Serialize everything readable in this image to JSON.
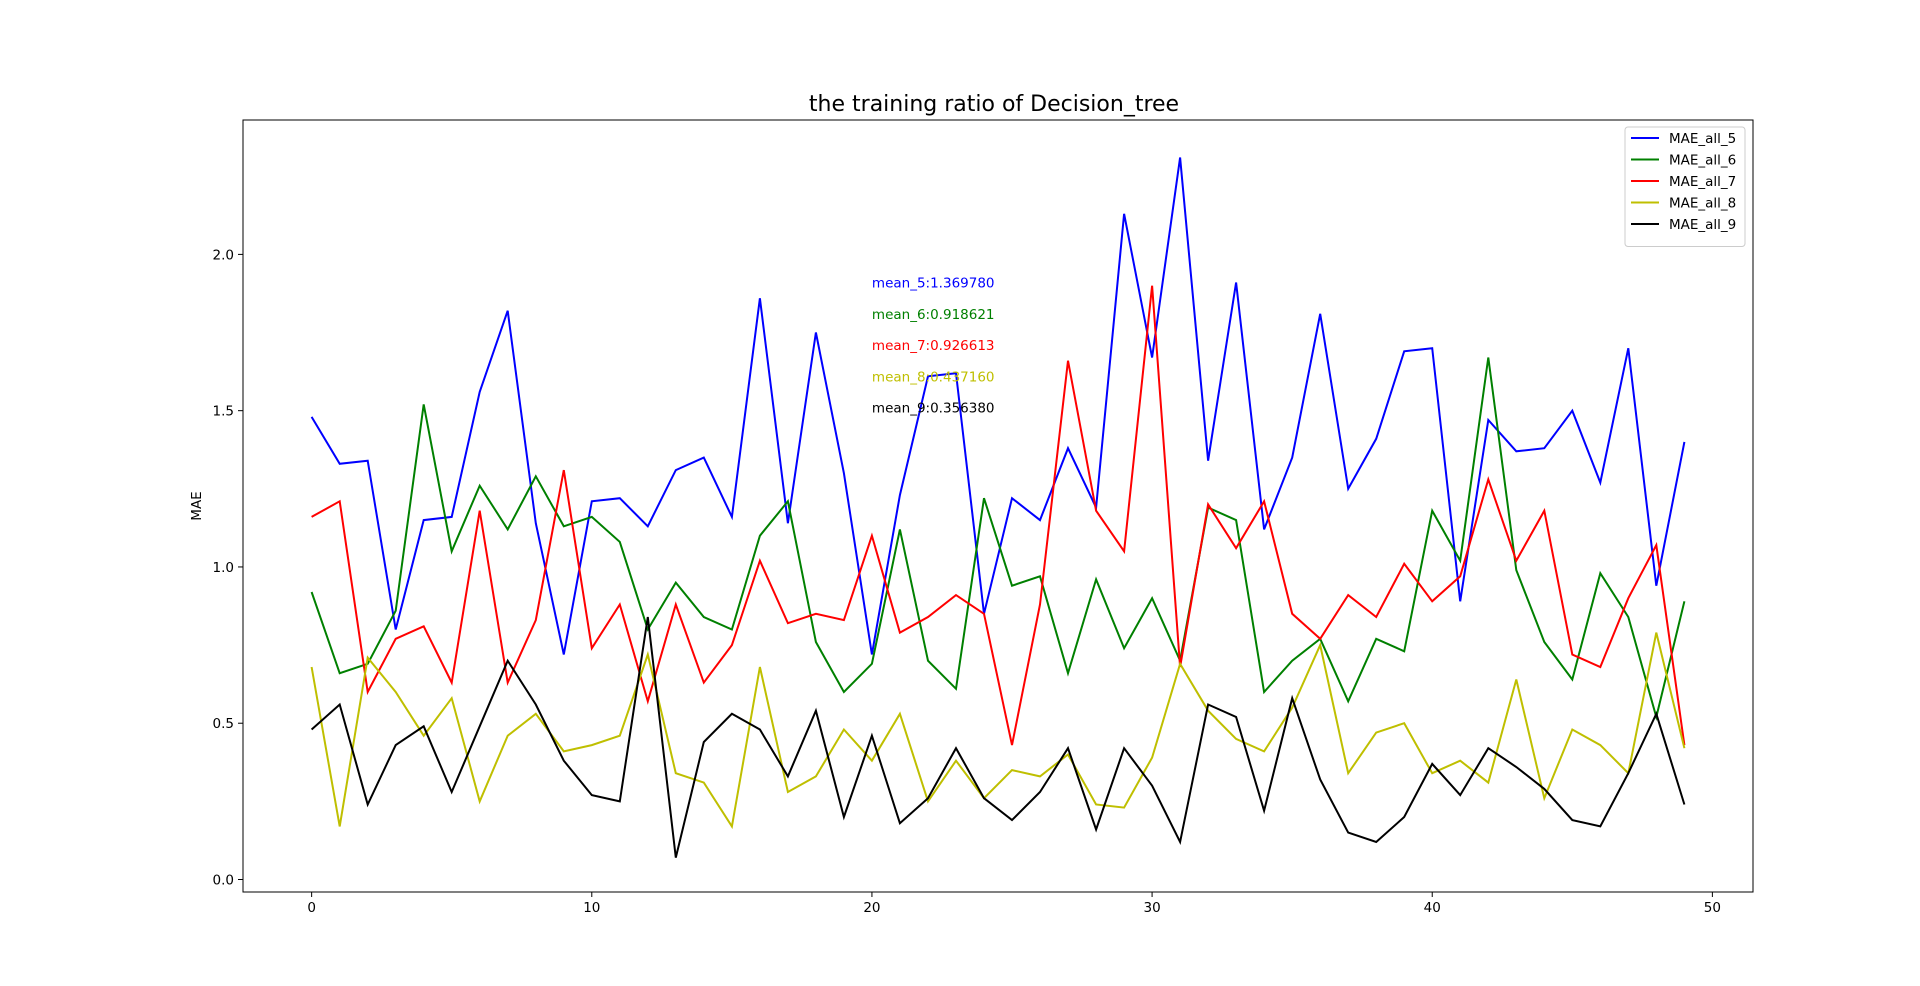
{
  "chart_data": {
    "type": "line",
    "title": "the training ratio of Decision_tree",
    "xlabel": "",
    "ylabel": "MAE",
    "xlim": [
      -2.45,
      51.45
    ],
    "ylim": [
      -0.04,
      2.43
    ],
    "xticks": [
      0,
      10,
      20,
      30,
      40,
      50
    ],
    "yticks": [
      0.0,
      0.5,
      1.0,
      1.5,
      2.0
    ],
    "xtick_labels": [
      "0",
      "10",
      "20",
      "30",
      "40",
      "50"
    ],
    "ytick_labels": [
      "0.0",
      "0.5",
      "1.0",
      "1.5",
      "2.0"
    ],
    "legend_position": "top-right",
    "grid": false,
    "x": [
      0,
      1,
      2,
      3,
      4,
      5,
      6,
      7,
      8,
      9,
      10,
      11,
      12,
      13,
      14,
      15,
      16,
      17,
      18,
      19,
      20,
      21,
      22,
      23,
      24,
      25,
      26,
      27,
      28,
      29,
      30,
      31,
      32,
      33,
      34,
      35,
      36,
      37,
      38,
      39,
      40,
      41,
      42,
      43,
      44,
      45,
      46,
      47,
      48,
      49
    ],
    "series": [
      {
        "name": "MAE_all_5",
        "color": "#0000ff",
        "values": [
          1.48,
          1.33,
          1.34,
          0.8,
          1.15,
          1.16,
          1.56,
          1.82,
          1.14,
          0.72,
          1.21,
          1.22,
          1.13,
          1.31,
          1.35,
          1.16,
          1.86,
          1.14,
          1.75,
          1.3,
          0.72,
          1.23,
          1.61,
          1.62,
          0.85,
          1.22,
          1.15,
          1.38,
          1.19,
          2.13,
          1.67,
          2.31,
          1.34,
          1.91,
          1.12,
          1.35,
          1.81,
          1.25,
          1.41,
          1.69,
          1.7,
          0.89,
          1.47,
          1.37,
          1.38,
          1.5,
          1.27,
          1.7,
          0.94,
          1.4
        ]
      },
      {
        "name": "MAE_all_6",
        "color": "#008000",
        "values": [
          0.92,
          0.66,
          0.69,
          0.86,
          1.52,
          1.05,
          1.26,
          1.12,
          1.29,
          1.13,
          1.16,
          1.08,
          0.8,
          0.95,
          0.84,
          0.8,
          1.1,
          1.21,
          0.76,
          0.6,
          0.69,
          1.12,
          0.7,
          0.61,
          1.22,
          0.94,
          0.97,
          0.66,
          0.96,
          0.74,
          0.9,
          0.7,
          1.19,
          1.15,
          0.6,
          0.7,
          0.77,
          0.57,
          0.77,
          0.73,
          1.18,
          1.02,
          1.67,
          0.99,
          0.76,
          0.64,
          0.98,
          0.84,
          0.52,
          0.89
        ]
      },
      {
        "name": "MAE_all_7",
        "color": "#ff0000",
        "values": [
          1.16,
          1.21,
          0.6,
          0.77,
          0.81,
          0.63,
          1.18,
          0.63,
          0.83,
          1.31,
          0.74,
          0.88,
          0.57,
          0.88,
          0.63,
          0.75,
          1.02,
          0.82,
          0.85,
          0.83,
          1.1,
          0.79,
          0.84,
          0.91,
          0.85,
          0.43,
          0.88,
          1.66,
          1.18,
          1.05,
          1.9,
          0.68,
          1.2,
          1.06,
          1.21,
          0.85,
          0.77,
          0.91,
          0.84,
          1.01,
          0.89,
          0.97,
          1.28,
          1.02,
          1.18,
          0.72,
          0.68,
          0.9,
          1.07,
          0.43
        ]
      },
      {
        "name": "MAE_all_8",
        "color": "#bfbf00",
        "values": [
          0.68,
          0.17,
          0.71,
          0.6,
          0.46,
          0.58,
          0.25,
          0.46,
          0.53,
          0.41,
          0.43,
          0.46,
          0.72,
          0.34,
          0.31,
          0.17,
          0.68,
          0.28,
          0.33,
          0.48,
          0.38,
          0.53,
          0.25,
          0.38,
          0.26,
          0.35,
          0.33,
          0.4,
          0.24,
          0.23,
          0.39,
          0.69,
          0.54,
          0.45,
          0.41,
          0.55,
          0.75,
          0.34,
          0.47,
          0.5,
          0.34,
          0.38,
          0.31,
          0.64,
          0.26,
          0.48,
          0.43,
          0.34,
          0.79,
          0.42
        ]
      },
      {
        "name": "MAE_all_9",
        "color": "#000000",
        "values": [
          0.48,
          0.56,
          0.24,
          0.43,
          0.49,
          0.28,
          0.49,
          0.7,
          0.56,
          0.38,
          0.27,
          0.25,
          0.84,
          0.07,
          0.44,
          0.53,
          0.48,
          0.33,
          0.54,
          0.2,
          0.46,
          0.18,
          0.26,
          0.42,
          0.26,
          0.19,
          0.28,
          0.42,
          0.16,
          0.42,
          0.3,
          0.12,
          0.56,
          0.52,
          0.22,
          0.58,
          0.32,
          0.15,
          0.12,
          0.2,
          0.37,
          0.27,
          0.42,
          0.36,
          0.29,
          0.19,
          0.17,
          0.34,
          0.53,
          0.24
        ]
      }
    ],
    "annotations": [
      {
        "text": "mean_5:1.369780",
        "color": "#0000ff",
        "x": 20,
        "y": 1.91
      },
      {
        "text": "mean_6:0.918621",
        "color": "#008000",
        "x": 20,
        "y": 1.81
      },
      {
        "text": "mean_7:0.926613",
        "color": "#ff0000",
        "x": 20,
        "y": 1.71
      },
      {
        "text": "mean_8:0.437160",
        "color": "#bfbf00",
        "x": 20,
        "y": 1.61
      },
      {
        "text": "mean_9:0.356380",
        "color": "#000000",
        "x": 20,
        "y": 1.51
      }
    ]
  }
}
